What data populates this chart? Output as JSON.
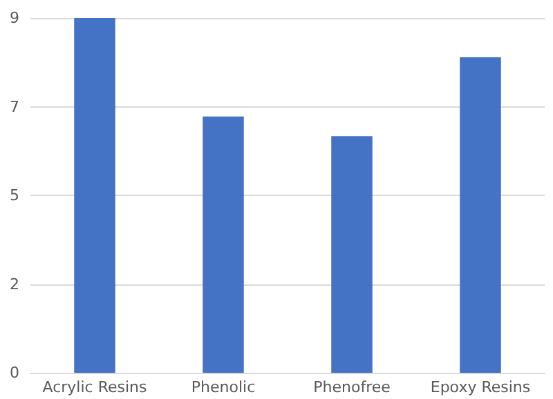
{
  "chart_data": {
    "type": "bar",
    "categories": [
      "Acrylic Resins",
      "Phenolic",
      "Phenofree",
      "Epoxy Resins"
    ],
    "values": [
      9,
      6.5,
      6.0,
      8.0
    ],
    "color": "#4472c4",
    "ylim": [
      0,
      9
    ],
    "yticks": [
      0,
      {
        "value": 2.25,
        "label": "2"
      },
      {
        "value": 4.5,
        "label": "5"
      },
      {
        "value": 6.75,
        "label": "7"
      },
      9
    ],
    "grid": "y"
  }
}
